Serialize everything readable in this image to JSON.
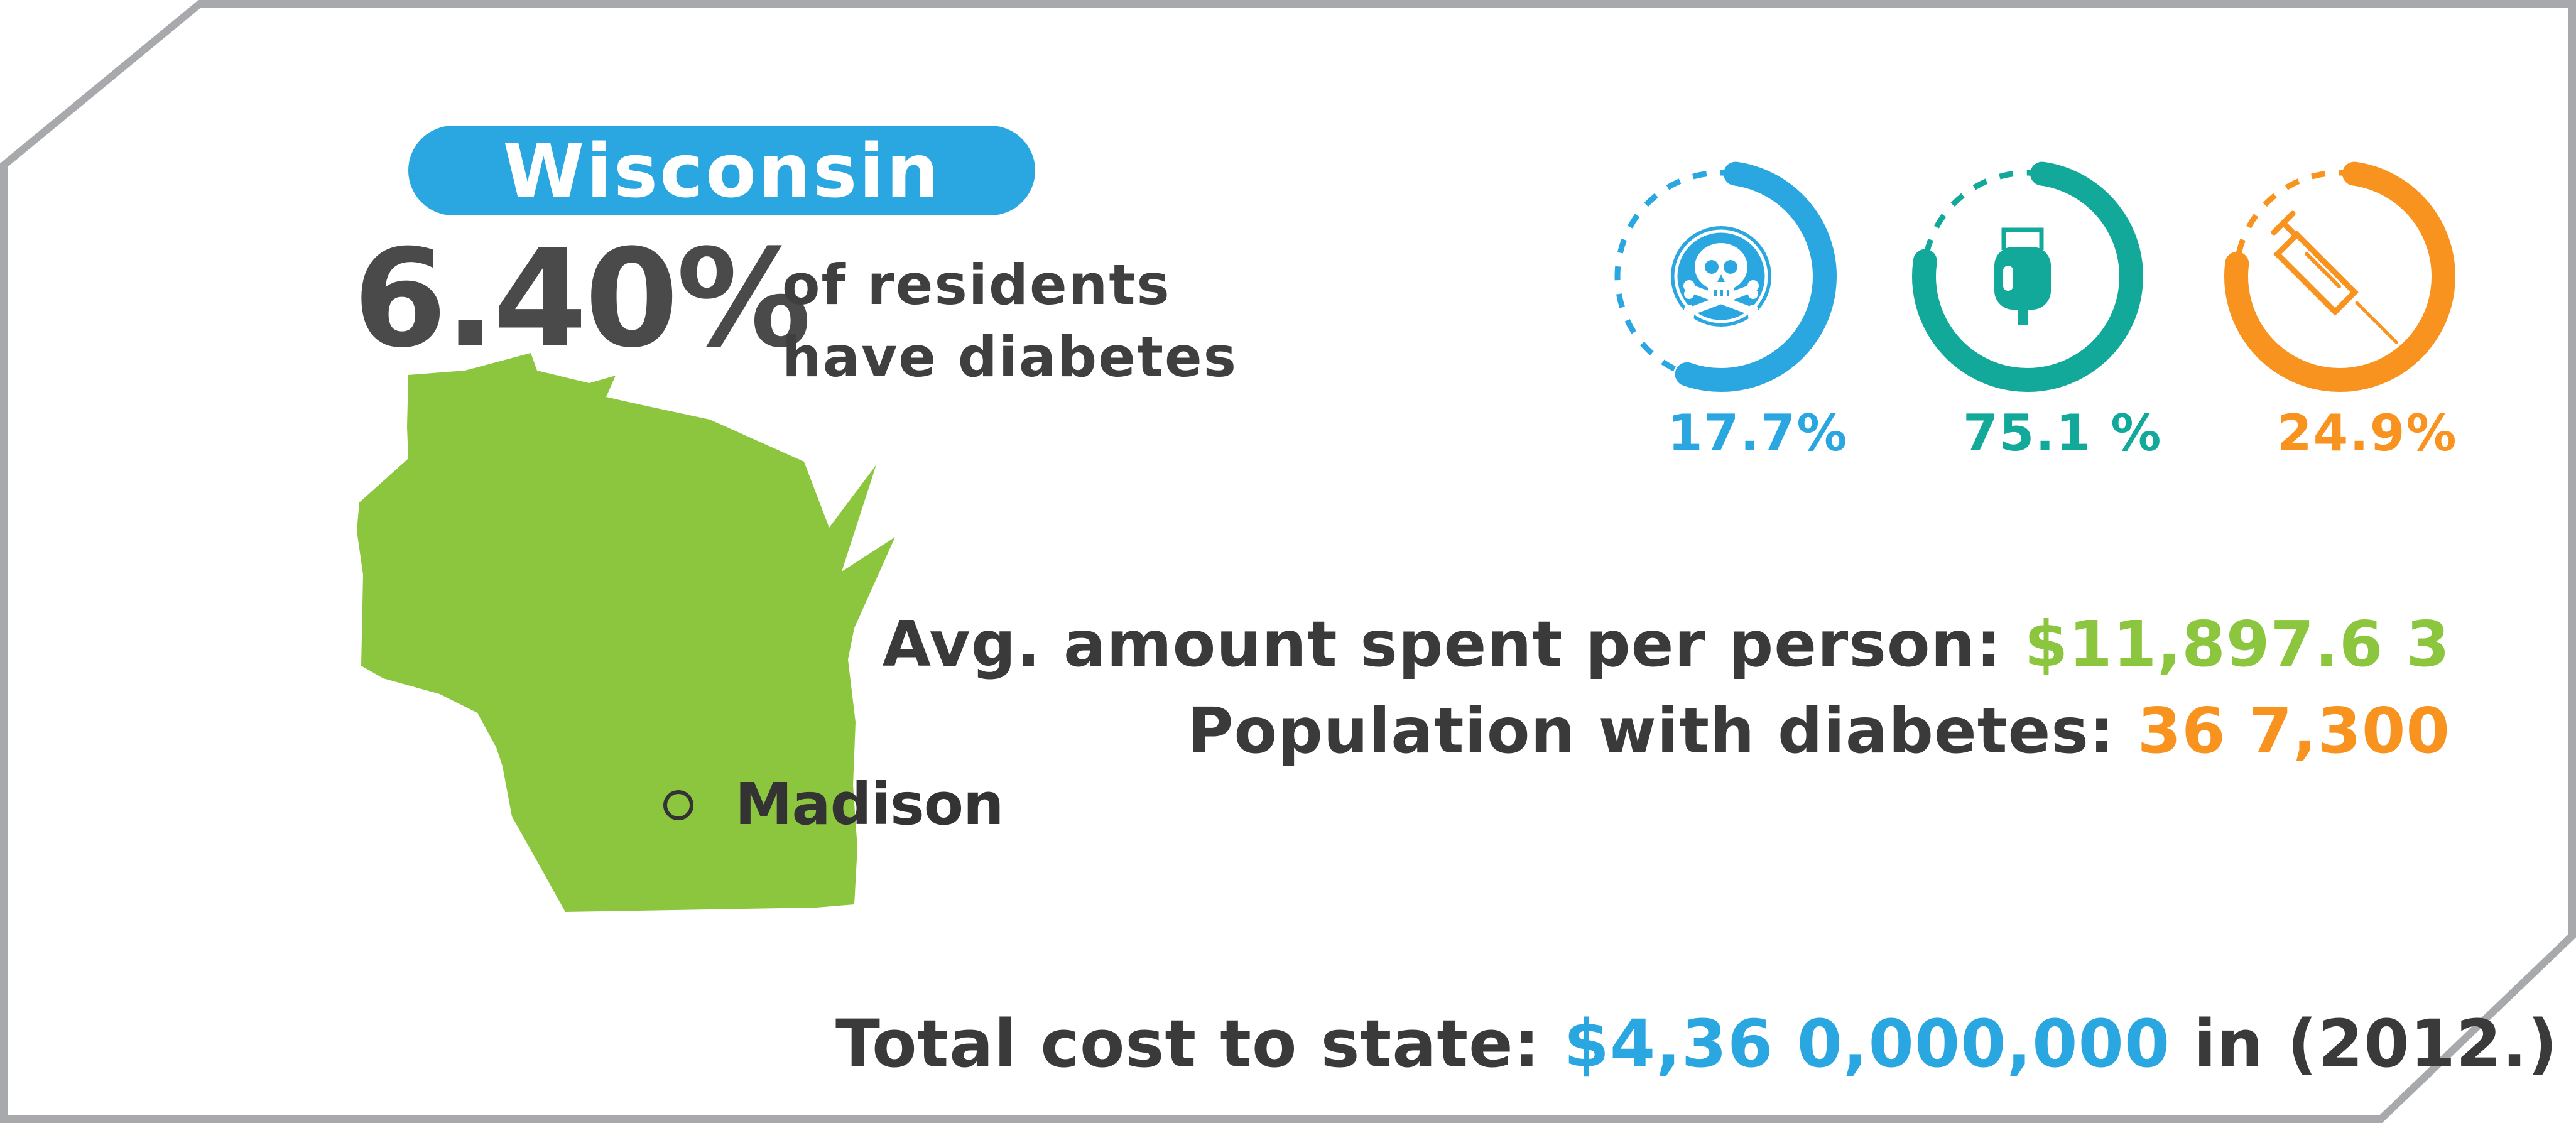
{
  "state": {
    "name": "Wisconsin",
    "percent": "6.40%",
    "desc_line1": "of residents",
    "desc_line2": "have diabetes",
    "capital": "Madison"
  },
  "rings": [
    {
      "icon": "skull-icon",
      "label": "17.7%",
      "value": 0.177,
      "color": "#2aa7e0"
    },
    {
      "icon": "iv-bag-icon",
      "label": "75.1 %",
      "value": 0.751,
      "color": "#12a89a"
    },
    {
      "icon": "syringe-icon",
      "label": "24.9%",
      "value": 0.249,
      "color": "#f7931e"
    }
  ],
  "stats": {
    "spend_label": "Avg. amount spent per person: ",
    "spend_value": "$11,897.6 3",
    "population_label": "Population with diabetes: ",
    "population_value": "36 7,300"
  },
  "total": {
    "label": "Total cost to state: ",
    "value": "$4,36 0,000,000",
    "suffix": " in (2012.)"
  },
  "colors": {
    "blue": "#2aa7e0",
    "teal": "#12a89a",
    "orange": "#f7931e",
    "green": "#8cc63f",
    "frame": "#a7a9ac",
    "text": "#3a3a3a"
  }
}
